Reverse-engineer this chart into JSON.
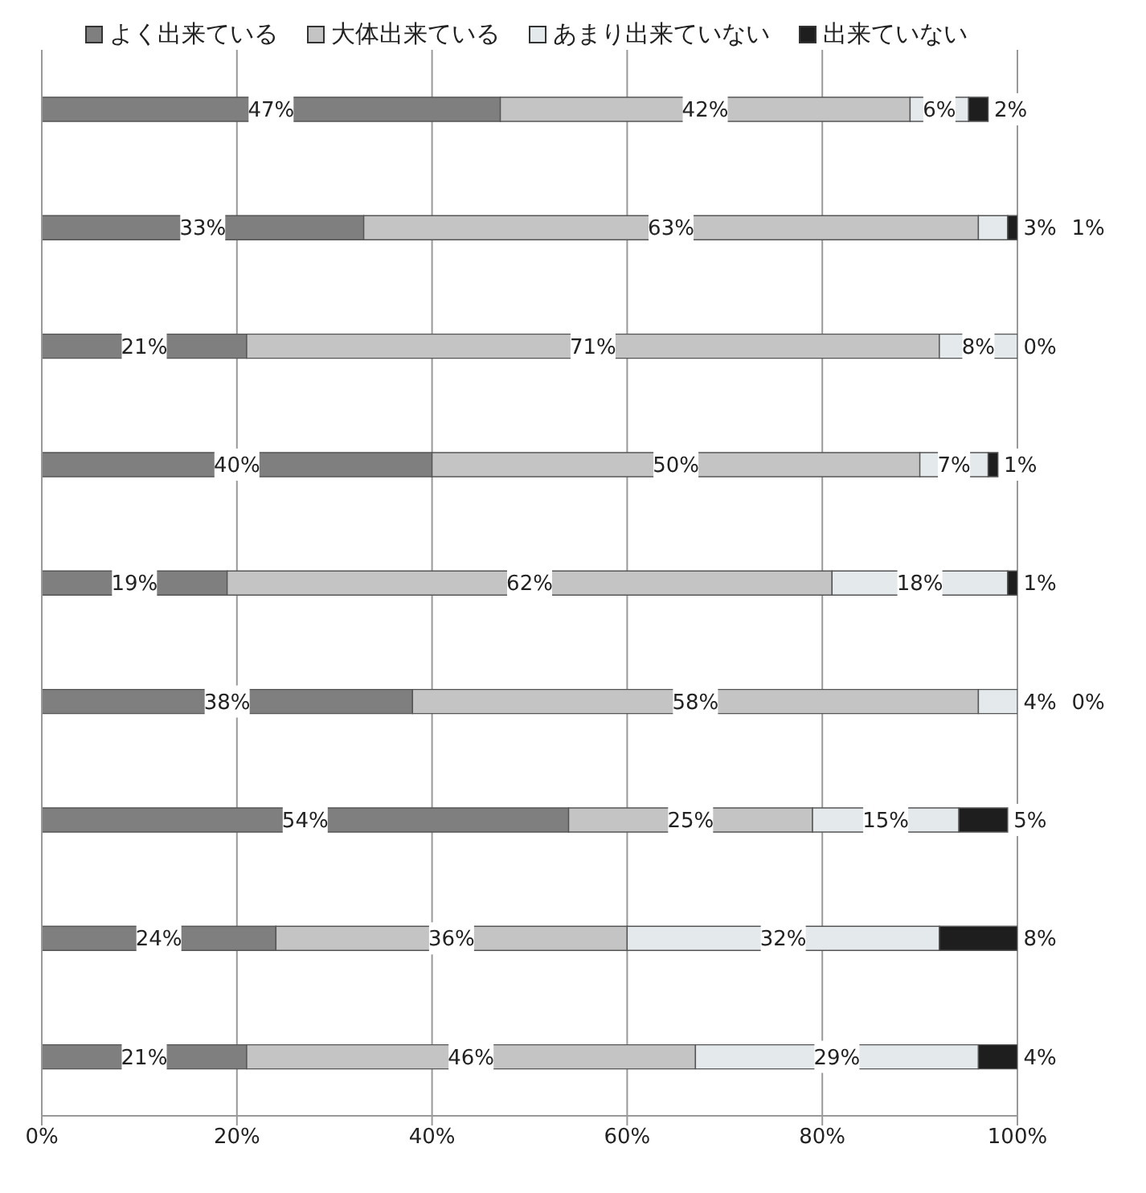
{
  "chart_data": {
    "type": "bar",
    "orientation": "horizontal",
    "stacked": true,
    "categories": [
      null,
      null,
      null,
      null,
      null,
      null,
      null,
      null,
      null
    ],
    "series": [
      {
        "name": "よく出来ている",
        "color": "#7f7f7f",
        "values": [
          47,
          33,
          21,
          40,
          19,
          38,
          54,
          24,
          21
        ],
        "value_labels": [
          "47%",
          "33%",
          "21%",
          "40%",
          "19%",
          "38%",
          "54%",
          "24%",
          "21%"
        ]
      },
      {
        "name": "大体出来ている",
        "color": "#c4c4c4",
        "values": [
          42,
          63,
          71,
          50,
          62,
          58,
          25,
          36,
          46
        ],
        "value_labels": [
          "42%",
          "63%",
          "71%",
          "50%",
          "62%",
          "58%",
          "25%",
          "36%",
          "46%"
        ]
      },
      {
        "name": "あまり出来ていない",
        "color": "#e4e9ec",
        "values": [
          6,
          3,
          8,
          7,
          18,
          4,
          15,
          32,
          29
        ],
        "value_labels": [
          "6%",
          "3%",
          "8%",
          "7%",
          "18%",
          "4%",
          "15%",
          "32%",
          "29%"
        ]
      },
      {
        "name": "出来ていない",
        "color": "#1e1e1e",
        "values": [
          2,
          1,
          0,
          1,
          1,
          0,
          5,
          8,
          4
        ],
        "value_labels": [
          "2%",
          "1%",
          "0%",
          "1%",
          "1%",
          "0%",
          "5%",
          "8%",
          "4%"
        ]
      }
    ],
    "xlim": [
      0,
      100
    ],
    "xticks": [
      {
        "value": 0,
        "label": "0%"
      },
      {
        "value": 20,
        "label": "20%"
      },
      {
        "value": 40,
        "label": "40%"
      },
      {
        "value": 60,
        "label": "60%"
      },
      {
        "value": 80,
        "label": "80%"
      },
      {
        "value": 100,
        "label": "100%"
      }
    ],
    "grid": "x",
    "legend": "top"
  }
}
